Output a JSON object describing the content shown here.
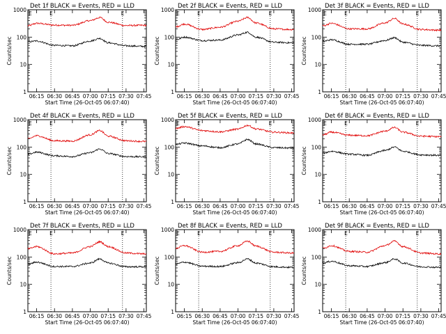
{
  "chart_data": {
    "type": "line",
    "layout": "3x3 grid",
    "xlabel": "Start Time (26-Oct-05 06:07:40)",
    "ylabel": "Counts/sec",
    "yscale": "log",
    "ylim": [
      1,
      1000
    ],
    "ytick_labels": [
      "1",
      "10",
      "100",
      "1000"
    ],
    "xlim": [
      "06:07:40",
      "07:47:00"
    ],
    "xtick_labels": [
      "06:15",
      "06:30",
      "06:45",
      "07:00",
      "07:15",
      "07:30",
      "07:45"
    ],
    "vertical_markers": [
      "06:27",
      "07:27"
    ],
    "marker_labels": [
      "E",
      "E"
    ],
    "series_colors": {
      "events": "#000000",
      "lld": "#e00000"
    },
    "panels": [
      {
        "title": "Det 1f BLACK = Events, RED = LLD",
        "series": [
          {
            "x": [
              "06:08",
              "06:15",
              "06:30",
              "06:45",
              "07:00",
              "07:08",
              "07:15",
              "07:30",
              "07:45"
            ],
            "values": [
              260,
              320,
              275,
              270,
              400,
              520,
              350,
              265,
              270
            ]
          },
          {
            "x": [
              "06:08",
              "06:15",
              "06:30",
              "06:45",
              "07:00",
              "07:08",
              "07:15",
              "07:30",
              "07:45"
            ],
            "values": [
              68,
              72,
              50,
              48,
              72,
              90,
              62,
              48,
              46
            ]
          }
        ]
      },
      {
        "title": "Det 2f BLACK = Events, RED = LLD",
        "series": [
          {
            "x": [
              "06:08",
              "06:15",
              "06:30",
              "06:45",
              "07:00",
              "07:08",
              "07:15",
              "07:30",
              "07:45"
            ],
            "values": [
              240,
              300,
              190,
              230,
              380,
              520,
              330,
              200,
              190
            ]
          },
          {
            "x": [
              "06:08",
              "06:15",
              "06:30",
              "06:45",
              "07:00",
              "07:08",
              "07:15",
              "07:30",
              "07:45"
            ],
            "values": [
              80,
              100,
              75,
              78,
              120,
              150,
              100,
              65,
              62
            ]
          }
        ]
      },
      {
        "title": "Det 3f BLACK = Events, RED = LLD",
        "series": [
          {
            "x": [
              "06:08",
              "06:15",
              "06:30",
              "06:45",
              "07:00",
              "07:08",
              "07:15",
              "07:30",
              "07:45"
            ],
            "values": [
              260,
              320,
              200,
              200,
              330,
              480,
              300,
              190,
              180
            ]
          },
          {
            "x": [
              "06:08",
              "06:15",
              "06:30",
              "06:45",
              "07:00",
              "07:08",
              "07:15",
              "07:30",
              "07:45"
            ],
            "values": [
              70,
              80,
              55,
              55,
              75,
              95,
              65,
              50,
              48
            ]
          }
        ]
      },
      {
        "title": "Det 4f BLACK = Events, RED = LLD",
        "series": [
          {
            "x": [
              "06:08",
              "06:15",
              "06:30",
              "06:45",
              "07:00",
              "07:08",
              "07:15",
              "07:30",
              "07:45"
            ],
            "values": [
              200,
              260,
              170,
              165,
              280,
              400,
              250,
              170,
              160
            ]
          },
          {
            "x": [
              "06:08",
              "06:15",
              "06:30",
              "06:45",
              "07:00",
              "07:08",
              "07:15",
              "07:30",
              "07:45"
            ],
            "values": [
              55,
              65,
              48,
              45,
              62,
              85,
              58,
              45,
              44
            ]
          }
        ]
      },
      {
        "title": "Det 5f BLACK = Events, RED = LLD",
        "series": [
          {
            "x": [
              "06:08",
              "06:15",
              "06:30",
              "06:45",
              "07:00",
              "07:08",
              "07:15",
              "07:30",
              "07:45"
            ],
            "values": [
              480,
              560,
              400,
              360,
              450,
              620,
              460,
              350,
              330
            ]
          },
          {
            "x": [
              "06:08",
              "06:15",
              "06:30",
              "06:45",
              "07:00",
              "07:08",
              "07:15",
              "07:30",
              "07:45"
            ],
            "values": [
              125,
              140,
              110,
              95,
              130,
              190,
              130,
              95,
              92
            ]
          }
        ]
      },
      {
        "title": "Det 6f BLACK = Events, RED = LLD",
        "series": [
          {
            "x": [
              "06:08",
              "06:15",
              "06:30",
              "06:45",
              "07:00",
              "07:08",
              "07:15",
              "07:30",
              "07:45"
            ],
            "values": [
              280,
              350,
              270,
              260,
              380,
              520,
              350,
              250,
              240
            ]
          },
          {
            "x": [
              "06:08",
              "06:15",
              "06:30",
              "06:45",
              "07:00",
              "07:08",
              "07:15",
              "07:30",
              "07:45"
            ],
            "values": [
              60,
              70,
              55,
              50,
              75,
              100,
              70,
              52,
              50
            ]
          }
        ]
      },
      {
        "title": "Det 7f BLACK = Events, RED = LLD",
        "series": [
          {
            "x": [
              "06:08",
              "06:15",
              "06:30",
              "06:45",
              "07:00",
              "07:08",
              "07:15",
              "07:30",
              "07:45"
            ],
            "values": [
              200,
              240,
              130,
              140,
              240,
              360,
              240,
              140,
              130
            ]
          },
          {
            "x": [
              "06:08",
              "06:15",
              "06:30",
              "06:45",
              "07:00",
              "07:08",
              "07:15",
              "07:30",
              "07:45"
            ],
            "values": [
              55,
              65,
              45,
              45,
              60,
              85,
              60,
              44,
              44
            ]
          }
        ]
      },
      {
        "title": "Det 8f BLACK = Events, RED = LLD",
        "series": [
          {
            "x": [
              "06:08",
              "06:15",
              "06:30",
              "06:45",
              "07:00",
              "07:08",
              "07:15",
              "07:30",
              "07:45"
            ],
            "values": [
              210,
              260,
              150,
              160,
              260,
              380,
              250,
              150,
              140
            ]
          },
          {
            "x": [
              "06:08",
              "06:15",
              "06:30",
              "06:45",
              "07:00",
              "07:08",
              "07:15",
              "07:30",
              "07:45"
            ],
            "values": [
              55,
              65,
              46,
              45,
              62,
              85,
              60,
              44,
              42
            ]
          }
        ]
      },
      {
        "title": "Det 9f BLACK = Events, RED = LLD",
        "series": [
          {
            "x": [
              "06:08",
              "06:15",
              "06:30",
              "06:45",
              "07:00",
              "07:08",
              "07:15",
              "07:30",
              "07:45"
            ],
            "values": [
              210,
              260,
              160,
              150,
              260,
              380,
              240,
              140,
              130
            ]
          },
          {
            "x": [
              "06:08",
              "06:15",
              "06:30",
              "06:45",
              "07:00",
              "07:08",
              "07:15",
              "07:30",
              "07:45"
            ],
            "values": [
              60,
              70,
              48,
              45,
              62,
              85,
              60,
              44,
              42
            ]
          }
        ]
      }
    ]
  }
}
